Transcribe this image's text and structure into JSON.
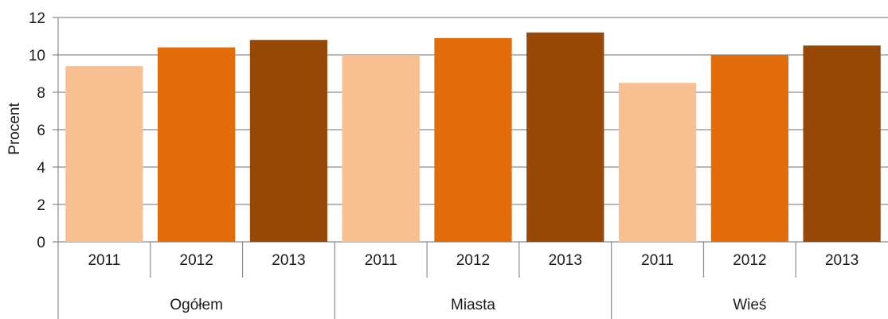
{
  "chart_data": {
    "type": "bar",
    "title": "",
    "xlabel": "",
    "ylabel": "Procent",
    "ylim": [
      0,
      12
    ],
    "yticks": [
      0,
      2,
      4,
      6,
      8,
      10,
      12
    ],
    "grid": true,
    "groups": [
      {
        "label": "Ogółem",
        "categories": [
          "2011",
          "2012",
          "2013"
        ],
        "values": [
          9.4,
          10.4,
          10.8
        ],
        "colors": [
          "#f8c091",
          "#e26b0a",
          "#974706"
        ]
      },
      {
        "label": "Miasta",
        "categories": [
          "2011",
          "2012",
          "2013"
        ],
        "values": [
          10.0,
          10.9,
          11.2
        ],
        "colors": [
          "#f8c091",
          "#e26b0a",
          "#974706"
        ]
      },
      {
        "label": "Wieś",
        "categories": [
          "2011",
          "2012",
          "2013"
        ],
        "values": [
          8.5,
          10.0,
          10.5
        ],
        "colors": [
          "#f8c091",
          "#e26b0a",
          "#974706"
        ]
      }
    ]
  }
}
